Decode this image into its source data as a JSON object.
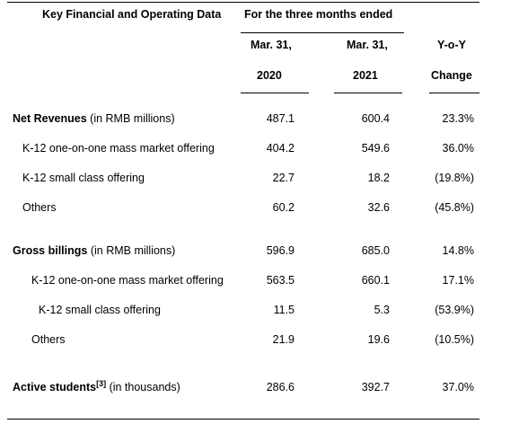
{
  "header": {
    "section_title": "Key Financial and Operating Data",
    "period_title": "For the three months ended",
    "col1_line1": "Mar. 31,",
    "col1_line2": "2020",
    "col2_line1": "Mar. 31,",
    "col2_line2": "2021",
    "col3_line1": "Y-o-Y",
    "col3_line2": "Change"
  },
  "rows": [
    {
      "label_bold": "Net Revenues",
      "label_rest": " (in RMB millions)",
      "v2020": "487.1",
      "v2021": "600.4",
      "yoy": "23.3%"
    },
    {
      "label": "K-12 one-on-one mass market offering",
      "v2020": "404.2",
      "v2021": "549.6",
      "yoy": "36.0%"
    },
    {
      "label": "K-12 small class offering",
      "v2020": "22.7",
      "v2021": "18.2",
      "yoy": "(19.8%)"
    },
    {
      "label": "Others",
      "v2020": "60.2",
      "v2021": "32.6",
      "yoy": "(45.8%)"
    },
    {
      "label_bold": "Gross billings",
      "label_rest": " (in RMB millions)",
      "v2020": "596.9",
      "v2021": "685.0",
      "yoy": "14.8%"
    },
    {
      "label": "K-12 one-on-one mass market offering",
      "v2020": "563.5",
      "v2021": "660.1",
      "yoy": "17.1%"
    },
    {
      "label": "K-12 small class offering",
      "v2020": "11.5",
      "v2021": "5.3",
      "yoy": "(53.9%)"
    },
    {
      "label": "Others",
      "v2020": "21.9",
      "v2021": "19.6",
      "yoy": "(10.5%)"
    },
    {
      "label_bold": "Active students",
      "footnote": "[3]",
      "label_rest": " (in thousands)",
      "v2020": "286.6",
      "v2021": "392.7",
      "yoy": "37.0%"
    }
  ]
}
